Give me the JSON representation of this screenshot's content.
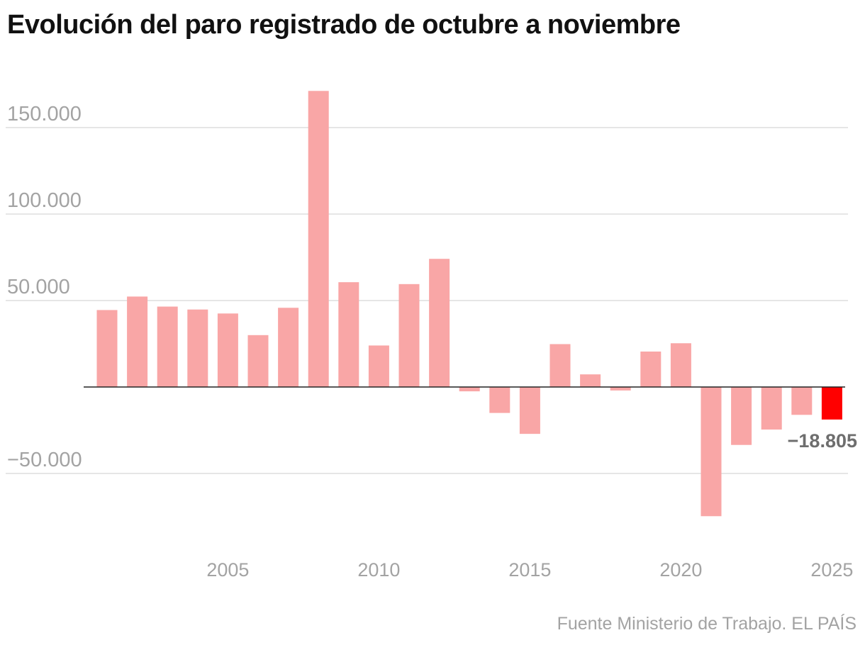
{
  "title": "Evolución del paro registrado de octubre a noviembre",
  "source": "Fuente Ministerio de Trabajo. EL PAÍS",
  "colors": {
    "bar": "#f9a6a6",
    "highlight": "#ff0000",
    "grid": "#dddddd",
    "zero": "#222222"
  },
  "chart_data": {
    "type": "bar",
    "title": "Evolución del paro registrado de octubre a noviembre",
    "xlabel": "",
    "ylabel": "",
    "x": [
      2001,
      2002,
      2003,
      2004,
      2005,
      2006,
      2007,
      2008,
      2009,
      2010,
      2011,
      2012,
      2013,
      2014,
      2015,
      2016,
      2017,
      2018,
      2019,
      2020,
      2021,
      2022,
      2023,
      2024,
      2025
    ],
    "values": [
      44500,
      52300,
      46500,
      44800,
      42500,
      30000,
      45800,
      171200,
      60600,
      24000,
      59500,
      74100,
      -2500,
      -15000,
      -27100,
      24800,
      7300,
      -2000,
      20500,
      25300,
      -74700,
      -33500,
      -24600,
      -16100,
      -18805
    ],
    "highlight_index": 24,
    "highlight_label": "−18.805",
    "ylim": [
      -85000,
      175000
    ],
    "yticks": [
      -50000,
      50000,
      100000,
      150000
    ],
    "ytick_labels": [
      "−50.000",
      "50.000",
      "100.000",
      "150.000"
    ],
    "xticks": [
      2005,
      2010,
      2015,
      2020,
      2025
    ],
    "xtick_labels": [
      "2005",
      "2010",
      "2015",
      "2020",
      "2025"
    ],
    "grid": true
  }
}
